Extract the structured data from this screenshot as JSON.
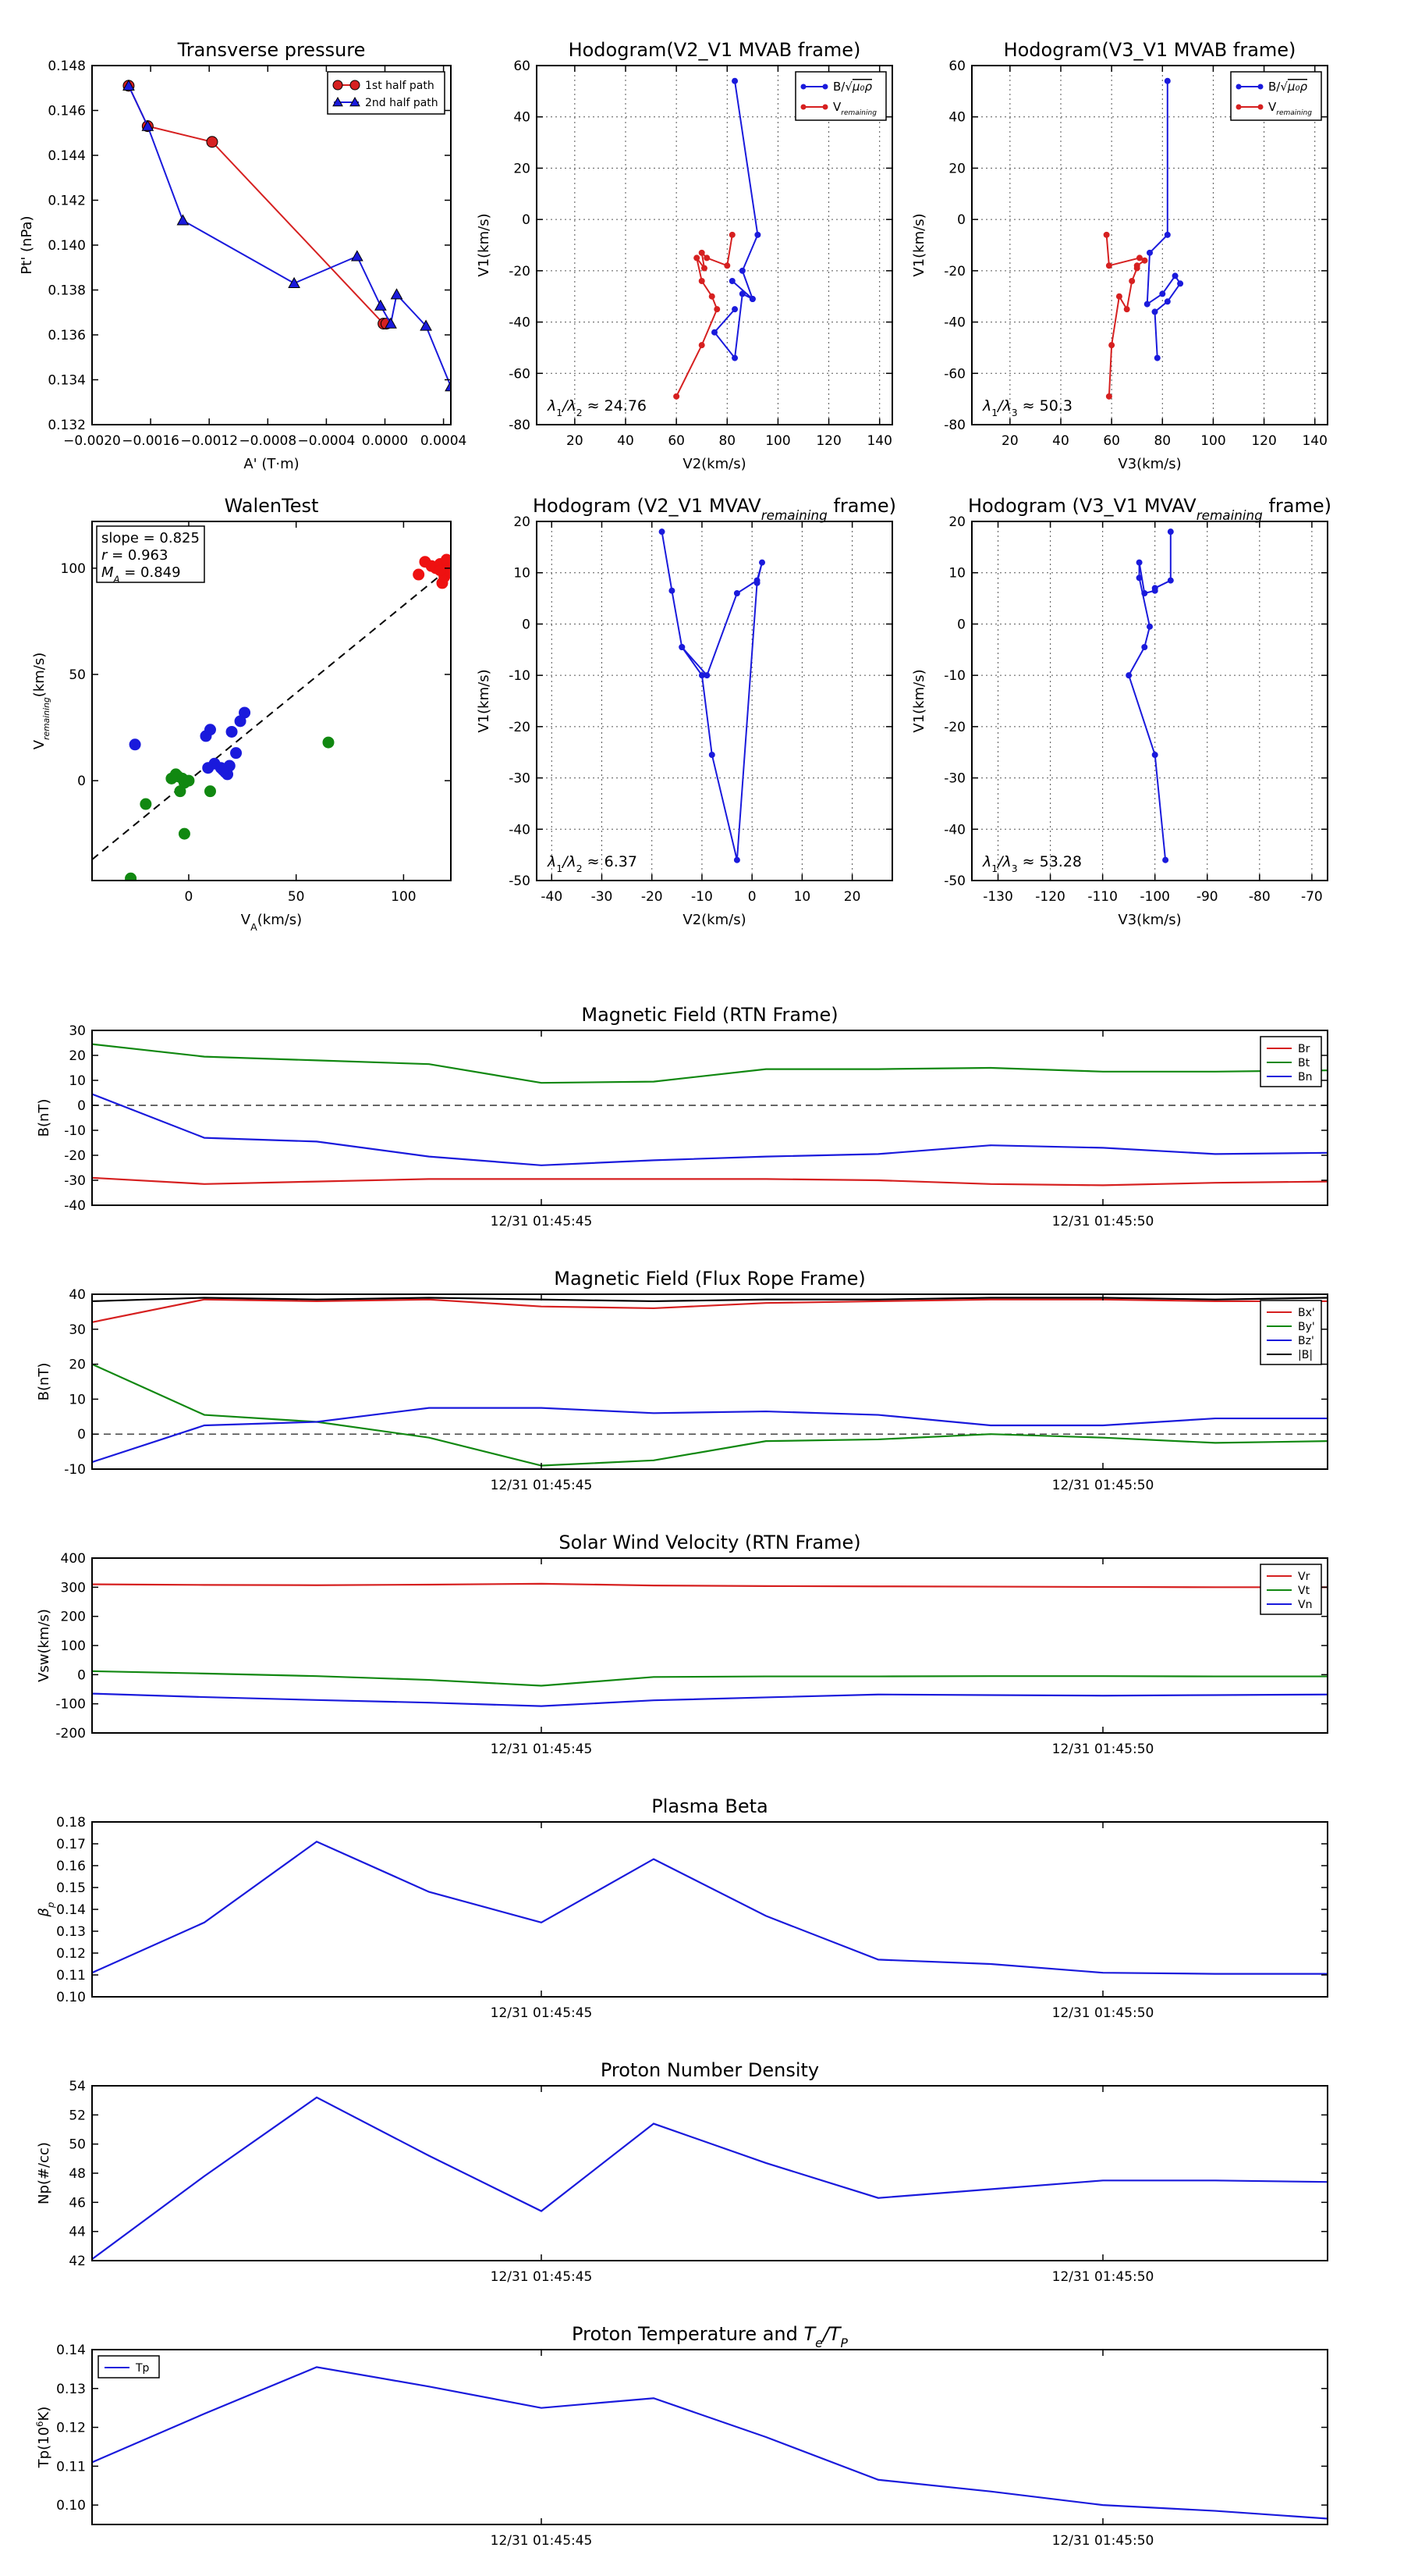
{
  "chart_data": [
    {
      "id": "transverse",
      "type": "line",
      "title": "Transverse pressure",
      "xlabel": "A' (T·m)",
      "ylabel": "Pt' (nPa)",
      "xlim": [
        -0.002,
        0.00045
      ],
      "ylim": [
        0.132,
        0.148
      ],
      "xticks": [
        -0.002,
        -0.0016,
        -0.0012,
        -0.0008,
        -0.0004,
        0.0,
        0.0004
      ],
      "xtick_labels": [
        "−0.0020",
        "−0.0016",
        "−0.0012",
        "−0.0008",
        "−0.0004",
        "0.0000",
        "0.0004"
      ],
      "yticks": [
        0.132,
        0.134,
        0.136,
        0.138,
        0.14,
        0.142,
        0.144,
        0.146,
        0.148
      ],
      "ytick_labels": [
        "0.132",
        "0.134",
        "0.136",
        "0.138",
        "0.140",
        "0.142",
        "0.144",
        "0.146",
        "0.148"
      ],
      "legend_position": "top-right",
      "series": [
        {
          "name": "1st half path",
          "color": "#d62020",
          "marker": "circle",
          "x": [
            -0.00175,
            -0.00162,
            -0.00118,
            -1e-05,
            1e-05
          ],
          "y": [
            0.1471,
            0.1453,
            0.1446,
            0.1365,
            0.1365
          ]
        },
        {
          "name": "2nd half path",
          "color": "#1a1adc",
          "marker": "triangle",
          "x": [
            -0.00175,
            -0.00162,
            -0.00138,
            -0.00062,
            -0.00019,
            -3e-05,
            4e-05,
            8e-05,
            0.00028,
            0.00045
          ],
          "y": [
            0.1471,
            0.1453,
            0.1411,
            0.1383,
            0.1395,
            0.1373,
            0.1365,
            0.1378,
            0.1364,
            0.1337
          ]
        }
      ]
    },
    {
      "id": "hodo_v2_mvab",
      "type": "line",
      "title": "Hodogram(V2_V1 MVAB frame)",
      "xlabel": "V2(km/s)",
      "ylabel": "V1(km/s)",
      "xlim": [
        5,
        145
      ],
      "ylim": [
        -80,
        60
      ],
      "xticks": [
        20,
        40,
        60,
        80,
        100,
        120,
        140
      ],
      "yticks": [
        -80,
        -60,
        -40,
        -20,
        0,
        20,
        40,
        60
      ],
      "grid": true,
      "legend_position": "top-right",
      "annotation": "λ1/λ2 ≈ 24.76",
      "series": [
        {
          "name": "B/√(μ0ρ)",
          "color": "#1a1adc",
          "x": [
            83,
            92,
            86,
            90,
            82,
            90,
            86,
            83,
            75,
            83
          ],
          "y": [
            54,
            -6,
            -20,
            -31,
            -24,
            -31,
            -29,
            -54,
            -44,
            -35
          ]
        },
        {
          "name": "V_remaining",
          "color": "#d62020",
          "x": [
            82,
            80,
            72,
            70,
            71,
            68,
            70,
            74,
            76,
            70,
            60
          ],
          "y": [
            -6,
            -18,
            -15,
            -13,
            -19,
            -15,
            -24,
            -30,
            -35,
            -49,
            -69
          ]
        }
      ]
    },
    {
      "id": "hodo_v3_mvab",
      "type": "line",
      "title": "Hodogram(V3_V1 MVAB frame)",
      "xlabel": "V3(km/s)",
      "ylabel": "V1(km/s)",
      "xlim": [
        5,
        145
      ],
      "ylim": [
        -80,
        60
      ],
      "xticks": [
        20,
        40,
        60,
        80,
        100,
        120,
        140
      ],
      "yticks": [
        -80,
        -60,
        -40,
        -20,
        0,
        20,
        40,
        60
      ],
      "grid": true,
      "legend_position": "top-right",
      "annotation": "λ1/λ3 ≈ 50.3",
      "series": [
        {
          "name": "B/√(μ0ρ)",
          "color": "#1a1adc",
          "x": [
            82,
            82,
            75,
            74,
            80,
            85,
            87,
            82,
            77,
            78
          ],
          "y": [
            54,
            -6,
            -13,
            -33,
            -29,
            -22,
            -25,
            -32,
            -36,
            -54
          ]
        },
        {
          "name": "V_remaining",
          "color": "#d62020",
          "x": [
            58,
            59,
            71,
            73,
            70,
            70,
            68,
            66,
            63,
            60,
            59
          ],
          "y": [
            -6,
            -18,
            -15,
            -16,
            -18,
            -19,
            -24,
            -35,
            -30,
            -49,
            -69
          ]
        }
      ]
    },
    {
      "id": "walen",
      "type": "scatter",
      "title": "WalenTest",
      "xlabel": "V_A(km/s)",
      "ylabel": "V_remaining(km/s)",
      "xlim": [
        -45,
        122
      ],
      "ylim": [
        -47,
        122
      ],
      "xticks": [
        0,
        50,
        100
      ],
      "yticks": [
        0,
        50,
        100
      ],
      "annotations": [
        "slope = 0.825",
        "r = 0.963",
        "M_A = 0.849"
      ],
      "fit_line": {
        "slope": 0.825,
        "intercept": 0
      },
      "series": [
        {
          "name": "red",
          "color": "#ee1111",
          "x": [
            107,
            110,
            113,
            115,
            117,
            118,
            119,
            120,
            121,
            119,
            117,
            122
          ],
          "y": [
            97,
            103,
            101,
            100,
            102,
            93,
            97,
            104,
            100,
            96,
            99,
            98
          ]
        },
        {
          "name": "blue",
          "color": "#1a1adc",
          "x": [
            -25,
            8,
            10,
            12,
            15,
            17,
            18,
            19,
            20,
            22,
            24,
            26,
            9,
            16
          ],
          "y": [
            17,
            21,
            24,
            8,
            6,
            4,
            3,
            7,
            23,
            13,
            28,
            32,
            6,
            5
          ]
        },
        {
          "name": "green",
          "color": "#118811",
          "x": [
            -27,
            -20,
            -8,
            -6,
            -5,
            -4,
            -3,
            -2,
            0,
            10,
            65,
            -27,
            -2
          ],
          "y": [
            -47,
            -11,
            1,
            3,
            2,
            -5,
            1,
            -1,
            0,
            -5,
            18,
            -46,
            -25
          ]
        }
      ]
    },
    {
      "id": "hodo_v2_mvav",
      "type": "line",
      "title": "Hodogram (V2_V1 MVAV_remaining frame)",
      "xlabel": "V2(km/s)",
      "ylabel": "V1(km/s)",
      "xlim": [
        -43,
        28
      ],
      "ylim": [
        -50,
        20
      ],
      "xticks": [
        -40,
        -30,
        -20,
        -10,
        0,
        10,
        20
      ],
      "yticks": [
        -50,
        -40,
        -30,
        -20,
        -10,
        0,
        10,
        20
      ],
      "grid": true,
      "annotation": "λ1/λ2 ≈ 6.37",
      "series": [
        {
          "name": "path",
          "color": "#1a1adc",
          "x": [
            -18,
            -16,
            -14,
            -10,
            -8,
            -3,
            1,
            2,
            1,
            -3,
            -9,
            -14
          ],
          "y": [
            18,
            6.5,
            -4.5,
            -10,
            -25.5,
            -46,
            8,
            12,
            8.5,
            6,
            -10,
            -4.5
          ]
        }
      ]
    },
    {
      "id": "hodo_v3_mvav",
      "type": "line",
      "title": "Hodogram (V3_V1 MVAV_remaining frame)",
      "xlabel": "V3(km/s)",
      "ylabel": "V1(km/s)",
      "xlim": [
        -135,
        -67
      ],
      "ylim": [
        -50,
        20
      ],
      "xticks": [
        -130,
        -120,
        -110,
        -100,
        -90,
        -80,
        -70
      ],
      "yticks": [
        -50,
        -40,
        -30,
        -20,
        -10,
        0,
        10,
        20
      ],
      "grid": true,
      "annotation": "λ1/λ3 ≈ 53.28",
      "series": [
        {
          "name": "path",
          "color": "#1a1adc",
          "x": [
            -97,
            -97,
            -100,
            -100,
            -102,
            -103,
            -103,
            -101,
            -102,
            -105,
            -100,
            -98
          ],
          "y": [
            18,
            8.5,
            7,
            6.5,
            6,
            12,
            9,
            -0.5,
            -4.5,
            -10,
            -25.5,
            -46
          ]
        }
      ]
    },
    {
      "id": "bfield_rtn",
      "type": "line",
      "title": "Magnetic Field (RTN Frame)",
      "ylabel": "B(nT)",
      "xlim": [
        0,
        11
      ],
      "ylim": [
        -40,
        30
      ],
      "yticks": [
        -40,
        -30,
        -20,
        -10,
        0,
        10,
        20,
        30
      ],
      "xticks": [
        4,
        9
      ],
      "xtick_labels": [
        "12/31 01:45:45",
        "12/31 01:45:50"
      ],
      "zero_line": true,
      "legend_position": "top-right",
      "series": [
        {
          "name": "Br",
          "color": "#d62020",
          "x": [
            0,
            1,
            2,
            3,
            4,
            5,
            6,
            7,
            8,
            9,
            10,
            11
          ],
          "y": [
            -29,
            -31.5,
            -30.5,
            -29.5,
            -29.5,
            -29.5,
            -29.5,
            -30,
            -31.5,
            -32,
            -31,
            -30.5
          ]
        },
        {
          "name": "Bt",
          "color": "#118811",
          "x": [
            0,
            1,
            2,
            3,
            4,
            5,
            6,
            7,
            8,
            9,
            10,
            11
          ],
          "y": [
            24.5,
            19.5,
            18,
            16.5,
            9,
            9.5,
            14.5,
            14.5,
            15,
            13.5,
            13.5,
            14
          ]
        },
        {
          "name": "Bn",
          "color": "#1a1adc",
          "x": [
            0,
            1,
            2,
            3,
            4,
            5,
            6,
            7,
            8,
            9,
            10,
            11
          ],
          "y": [
            4.5,
            -13,
            -14.5,
            -20.5,
            -24,
            -22,
            -20.5,
            -19.5,
            -16,
            -17,
            -19.5,
            -19
          ]
        }
      ]
    },
    {
      "id": "bfield_fr",
      "type": "line",
      "title": "Magnetic Field (Flux Rope Frame)",
      "ylabel": "B(nT)",
      "xlim": [
        0,
        11
      ],
      "ylim": [
        -10,
        40
      ],
      "yticks": [
        -10,
        0,
        10,
        20,
        30,
        40
      ],
      "xticks": [
        4,
        9
      ],
      "xtick_labels": [
        "12/31 01:45:45",
        "12/31 01:45:50"
      ],
      "zero_line": true,
      "legend_position": "top-right",
      "series": [
        {
          "name": "Bx'",
          "color": "#d62020",
          "x": [
            0,
            1,
            2,
            3,
            4,
            5,
            6,
            7,
            8,
            9,
            10,
            11
          ],
          "y": [
            32,
            38.5,
            38,
            38.5,
            36.5,
            36,
            37.5,
            38,
            38.5,
            38.5,
            38,
            38
          ]
        },
        {
          "name": "By'",
          "color": "#118811",
          "x": [
            0,
            1,
            2,
            3,
            4,
            5,
            6,
            7,
            8,
            9,
            10,
            11
          ],
          "y": [
            20,
            5.5,
            3.5,
            -1,
            -9,
            -7.5,
            -2,
            -1.5,
            0,
            -1,
            -2.5,
            -2
          ]
        },
        {
          "name": "Bz'",
          "color": "#1a1adc",
          "x": [
            0,
            1,
            2,
            3,
            4,
            5,
            6,
            7,
            8,
            9,
            10,
            11
          ],
          "y": [
            -8,
            2.5,
            3.5,
            7.5,
            7.5,
            6,
            6.5,
            5.5,
            2.5,
            2.5,
            4.5,
            4.5
          ]
        },
        {
          "name": "|B|",
          "color": "#000000",
          "x": [
            0,
            1,
            2,
            3,
            4,
            5,
            6,
            7,
            8,
            9,
            10,
            11
          ],
          "y": [
            38,
            39,
            38.5,
            39,
            38.5,
            38,
            38.5,
            38.5,
            39,
            39,
            38.5,
            39
          ]
        }
      ]
    },
    {
      "id": "vsw",
      "type": "line",
      "title": "Solar Wind Velocity (RTN Frame)",
      "ylabel": "Vsw(km/s)",
      "xlim": [
        0,
        11
      ],
      "ylim": [
        -200,
        400
      ],
      "yticks": [
        -200,
        -100,
        0,
        100,
        200,
        300,
        400
      ],
      "xticks": [
        4,
        9
      ],
      "xtick_labels": [
        "12/31 01:45:45",
        "12/31 01:45:50"
      ],
      "legend_position": "top-right",
      "series": [
        {
          "name": "Vr",
          "color": "#d62020",
          "x": [
            0,
            1,
            2,
            3,
            4,
            5,
            6,
            7,
            8,
            9,
            10,
            11
          ],
          "y": [
            310,
            308,
            307,
            309,
            312,
            306,
            304,
            303,
            302,
            301,
            300,
            300
          ]
        },
        {
          "name": "Vt",
          "color": "#118811",
          "x": [
            0,
            1,
            2,
            3,
            4,
            5,
            6,
            7,
            8,
            9,
            10,
            11
          ],
          "y": [
            12,
            4,
            -5,
            -18,
            -38,
            -8,
            -6,
            -6,
            -5,
            -5,
            -6,
            -6
          ]
        },
        {
          "name": "Vn",
          "color": "#1a1adc",
          "x": [
            0,
            1,
            2,
            3,
            4,
            5,
            6,
            7,
            8,
            9,
            10,
            11
          ],
          "y": [
            -65,
            -77,
            -87,
            -96,
            -108,
            -88,
            -78,
            -68,
            -70,
            -72,
            -70,
            -68
          ]
        }
      ]
    },
    {
      "id": "beta",
      "type": "line",
      "title": "Plasma Beta",
      "ylabel": "β_p",
      "xlim": [
        0,
        11
      ],
      "ylim": [
        0.1,
        0.18
      ],
      "yticks": [
        0.1,
        0.11,
        0.12,
        0.13,
        0.14,
        0.15,
        0.16,
        0.17,
        0.18
      ],
      "ytick_labels": [
        "0.10",
        "0.11",
        "0.12",
        "0.13",
        "0.14",
        "0.15",
        "0.16",
        "0.17",
        "0.18"
      ],
      "xticks": [
        4,
        9
      ],
      "xtick_labels": [
        "12/31 01:45:45",
        "12/31 01:45:50"
      ],
      "series": [
        {
          "name": "beta",
          "color": "#1a1adc",
          "x": [
            0,
            1,
            2,
            3,
            4,
            5,
            6,
            7,
            8,
            9,
            10,
            11
          ],
          "y": [
            0.111,
            0.134,
            0.171,
            0.148,
            0.134,
            0.163,
            0.137,
            0.117,
            0.115,
            0.111,
            0.1105,
            0.1105
          ]
        }
      ]
    },
    {
      "id": "density",
      "type": "line",
      "title": "Proton Number Density",
      "ylabel": "Np(#/cc)",
      "xlim": [
        0,
        11
      ],
      "ylim": [
        42,
        54
      ],
      "yticks": [
        42,
        44,
        46,
        48,
        50,
        52,
        54
      ],
      "xticks": [
        4,
        9
      ],
      "xtick_labels": [
        "12/31 01:45:45",
        "12/31 01:45:50"
      ],
      "series": [
        {
          "name": "Np",
          "color": "#1a1adc",
          "x": [
            0,
            1,
            2,
            3,
            4,
            5,
            6,
            7,
            8,
            9,
            10,
            11
          ],
          "y": [
            42.1,
            47.8,
            53.2,
            49.2,
            45.4,
            51.4,
            48.7,
            46.3,
            46.9,
            47.5,
            47.5,
            47.4
          ]
        }
      ]
    },
    {
      "id": "temperature",
      "type": "line",
      "title": "Proton Temperature and T_e/T_p",
      "ylabel": "Tp(10^6 K)",
      "xlim": [
        0,
        11
      ],
      "ylim": [
        0.095,
        0.14
      ],
      "yticks": [
        0.1,
        0.11,
        0.12,
        0.13,
        0.14
      ],
      "ytick_labels": [
        "0.10",
        "0.11",
        "0.12",
        "0.13",
        "0.14"
      ],
      "xticks": [
        4,
        9
      ],
      "xtick_labels": [
        "12/31 01:45:45",
        "12/31 01:45:50"
      ],
      "legend_position": "top-left",
      "series": [
        {
          "name": "Tp",
          "color": "#1a1adc",
          "x": [
            0,
            1,
            2,
            3,
            4,
            5,
            6,
            7,
            8,
            9,
            10,
            11
          ],
          "y": [
            0.111,
            0.1235,
            0.1355,
            0.1305,
            0.125,
            0.1275,
            0.1175,
            0.1065,
            0.1035,
            0.1,
            0.0985,
            0.0965
          ]
        }
      ]
    }
  ]
}
